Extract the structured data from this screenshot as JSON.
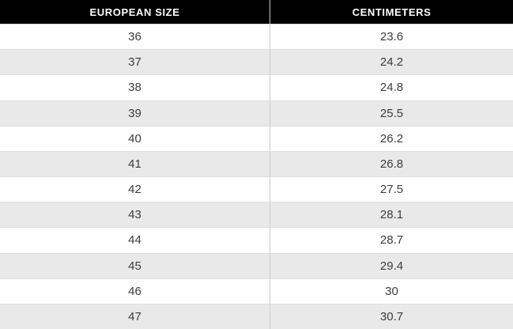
{
  "colors": {
    "header_bg": "#000000",
    "header_text": "#ffffff",
    "row_bg": "#ffffff",
    "row_alt_bg": "#e9e9e9",
    "row_border": "#dddddd",
    "column_divider": "#cccccc",
    "cell_text": "#3c3c3c"
  },
  "table": {
    "columns": [
      "EUROPEAN SIZE",
      "CENTIMETERS"
    ],
    "rows": [
      [
        "36",
        "23.6"
      ],
      [
        "37",
        "24.2"
      ],
      [
        "38",
        "24.8"
      ],
      [
        "39",
        "25.5"
      ],
      [
        "40",
        "26.2"
      ],
      [
        "41",
        "26.8"
      ],
      [
        "42",
        "27.5"
      ],
      [
        "43",
        "28.1"
      ],
      [
        "44",
        "28.7"
      ],
      [
        "45",
        "29.4"
      ],
      [
        "46",
        "30"
      ],
      [
        "47",
        "30.7"
      ]
    ]
  },
  "chart_data": {
    "type": "table",
    "columns": [
      "EUROPEAN SIZE",
      "CENTIMETERS"
    ],
    "european_sizes": [
      36,
      37,
      38,
      39,
      40,
      41,
      42,
      43,
      44,
      45,
      46,
      47
    ],
    "centimeters": [
      23.6,
      24.2,
      24.8,
      25.5,
      26.2,
      26.8,
      27.5,
      28.1,
      28.7,
      29.4,
      30,
      30.7
    ],
    "layout": {
      "header_style": "black background, white bold uppercase text",
      "row_striping": "alternating white and light gray starting with white",
      "cell_alignment": "center"
    }
  }
}
